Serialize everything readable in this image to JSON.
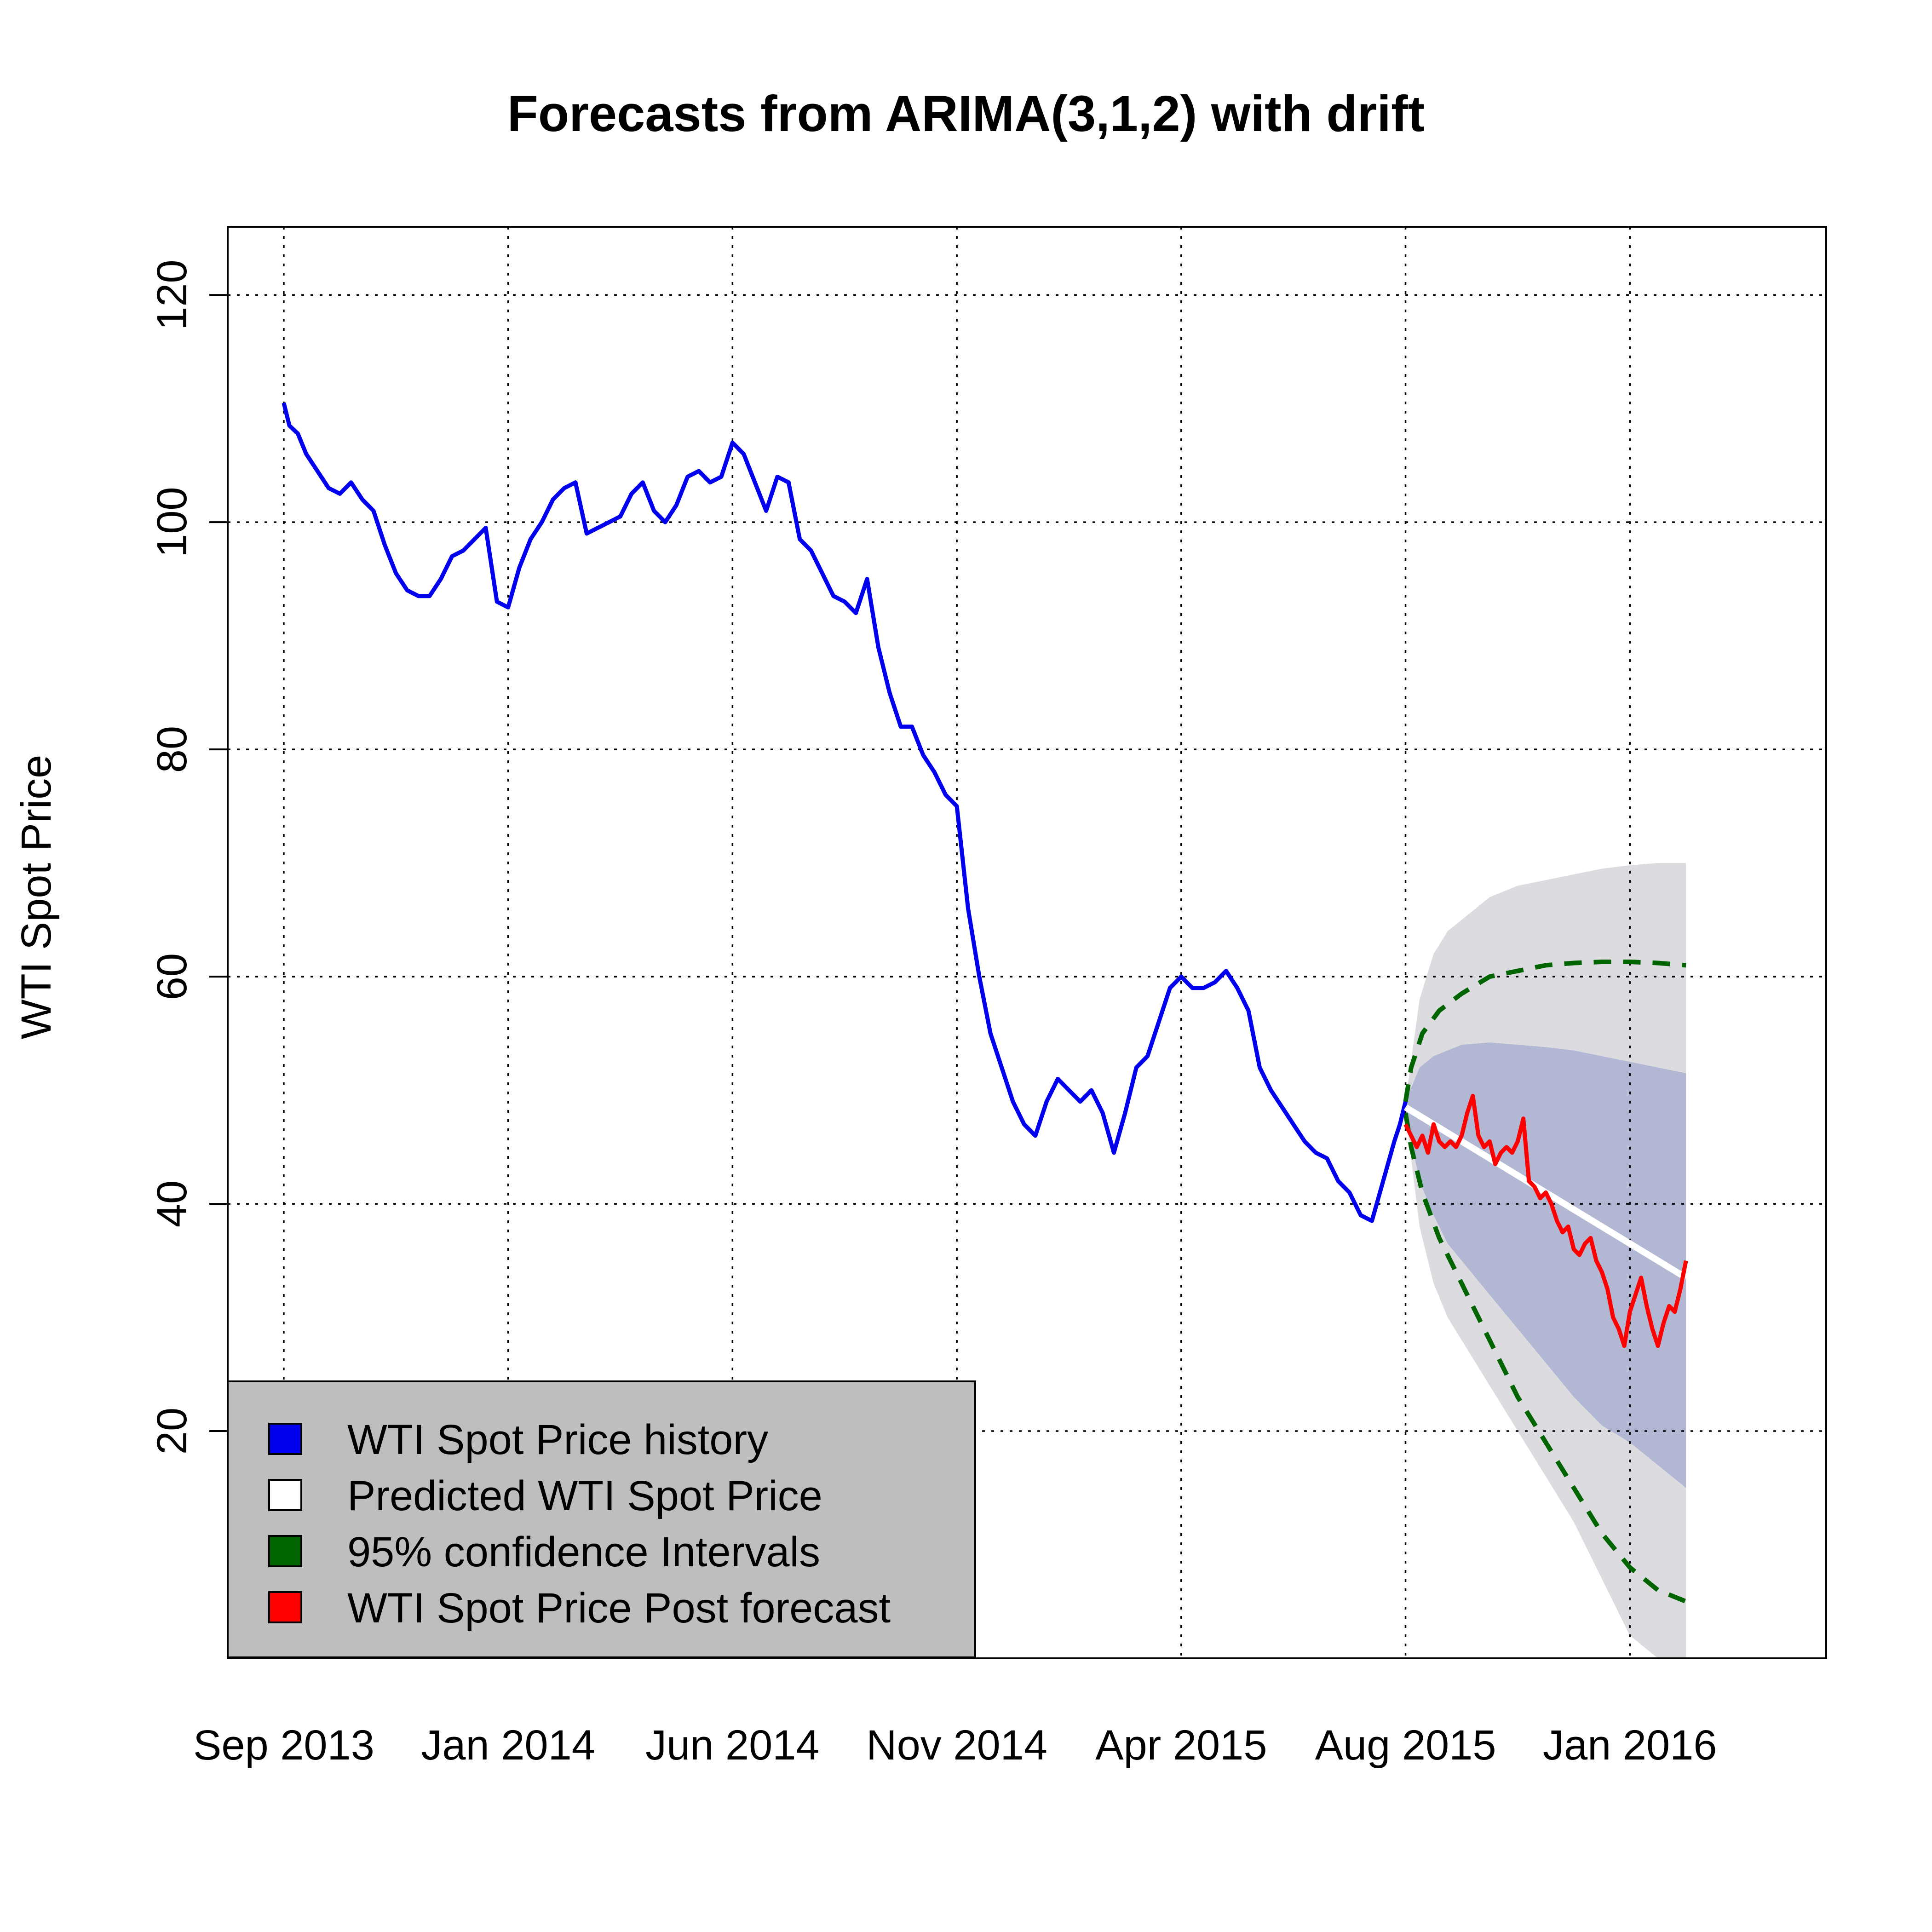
{
  "chart_data": {
    "type": "line",
    "title": "Forecasts from ARIMA(3,1,2) with drift",
    "xlabel": "",
    "ylabel": "WTI Spot Price",
    "xlim": [
      0,
      28.5
    ],
    "ylim": [
      0,
      126
    ],
    "x_ticks": [
      {
        "label": "Sep 2013",
        "x": 1
      },
      {
        "label": "Jan 2014",
        "x": 5
      },
      {
        "label": "Jun 2014",
        "x": 9
      },
      {
        "label": "Nov 2014",
        "x": 13
      },
      {
        "label": "Apr 2015",
        "x": 17
      },
      {
        "label": "Aug 2015",
        "x": 21
      },
      {
        "label": "Jan 2016",
        "x": 25
      }
    ],
    "y_ticks": [
      20,
      40,
      60,
      80,
      100,
      120
    ],
    "grid": true,
    "legend_position": "bottom-left",
    "legend": [
      {
        "label": "WTI Spot Price  history",
        "color": "#0000ee"
      },
      {
        "label": "Predicted  WTI Spot Price",
        "color": "#ffffff"
      },
      {
        "label": "95% confidence Intervals",
        "color": "#006400"
      },
      {
        "label": "WTI Spot Price  Post forecast",
        "color": "#ff0000"
      }
    ],
    "series": [
      {
        "name": "WTI Spot Price  history",
        "color": "#0000ee",
        "x": [
          1.0,
          1.1,
          1.25,
          1.4,
          1.6,
          1.8,
          2.0,
          2.2,
          2.4,
          2.6,
          2.8,
          3.0,
          3.2,
          3.4,
          3.6,
          3.8,
          4.0,
          4.2,
          4.4,
          4.6,
          4.8,
          5.0,
          5.2,
          5.4,
          5.6,
          5.8,
          6.0,
          6.2,
          6.4,
          6.6,
          6.8,
          7.0,
          7.2,
          7.4,
          7.6,
          7.8,
          8.0,
          8.2,
          8.4,
          8.6,
          8.8,
          9.0,
          9.2,
          9.4,
          9.6,
          9.8,
          10.0,
          10.2,
          10.4,
          10.6,
          10.8,
          11.0,
          11.2,
          11.4,
          11.6,
          11.8,
          12.0,
          12.2,
          12.4,
          12.6,
          12.8,
          13.0,
          13.2,
          13.4,
          13.6,
          13.8,
          14.0,
          14.2,
          14.4,
          14.6,
          14.8,
          15.0,
          15.2,
          15.4,
          15.6,
          15.8,
          16.0,
          16.2,
          16.4,
          16.6,
          16.8,
          17.0,
          17.2,
          17.4,
          17.6,
          17.8,
          18.0,
          18.2,
          18.4,
          18.6,
          18.8,
          19.0,
          19.2,
          19.4,
          19.6,
          19.8,
          20.0,
          20.2,
          20.4,
          20.6,
          20.8,
          20.9,
          21.0
        ],
        "values": [
          110.5,
          108.5,
          107.8,
          106,
          104.5,
          103,
          102.5,
          103.5,
          102,
          101,
          98,
          95.5,
          94,
          93.5,
          93.5,
          95,
          97,
          97.5,
          98.5,
          99.5,
          93,
          92.5,
          96,
          98.5,
          100,
          102,
          103,
          103.5,
          99,
          99.5,
          100,
          100.5,
          102.5,
          103.5,
          101,
          100,
          101.5,
          104,
          104.5,
          103.5,
          104,
          107,
          106,
          103.5,
          101,
          104,
          103.5,
          98.5,
          97.5,
          95.5,
          93.5,
          93,
          92,
          95,
          89,
          85,
          82,
          82,
          79.5,
          78,
          76,
          75,
          66,
          60,
          55,
          52,
          49,
          47,
          46,
          49,
          51,
          50,
          49,
          50,
          48,
          44.5,
          48,
          52,
          53,
          56,
          59,
          60,
          59,
          59,
          59.5,
          60.5,
          59,
          57,
          52,
          50,
          48.5,
          47,
          45.5,
          44.5,
          44,
          42,
          41,
          39,
          38.5,
          42,
          45.5,
          47,
          49
        ]
      },
      {
        "name": "Predicted  WTI Spot Price",
        "color": "#ffffff",
        "x": [
          21.0,
          26.0
        ],
        "values": [
          48.5,
          33.5
        ]
      },
      {
        "name": "WTI Spot Price  Post forecast",
        "color": "#ff0000",
        "x": [
          21.0,
          21.1,
          21.2,
          21.3,
          21.4,
          21.5,
          21.6,
          21.7,
          21.8,
          21.9,
          22.0,
          22.1,
          22.2,
          22.3,
          22.4,
          22.5,
          22.6,
          22.7,
          22.8,
          22.9,
          23.0,
          23.1,
          23.2,
          23.3,
          23.4,
          23.5,
          23.6,
          23.7,
          23.8,
          23.9,
          24.0,
          24.1,
          24.2,
          24.3,
          24.4,
          24.5,
          24.6,
          24.7,
          24.8,
          24.9,
          25.0,
          25.1,
          25.2,
          25.3,
          25.4,
          25.5,
          25.6,
          25.7,
          25.8,
          25.9,
          26.0
        ],
        "values": [
          47,
          46,
          45,
          46,
          44.5,
          47,
          45.5,
          45,
          45.5,
          45,
          46,
          48,
          49.5,
          46,
          45,
          45.5,
          43.5,
          44.5,
          45,
          44.5,
          45.5,
          47.5,
          42,
          41.5,
          40.5,
          41,
          40,
          38.5,
          37.5,
          38,
          36,
          35.5,
          36.5,
          37,
          35,
          34,
          32.5,
          30,
          29,
          27.5,
          30.5,
          32,
          33.5,
          31,
          29,
          27.5,
          29.5,
          31,
          30.5,
          32.5,
          35
        ]
      }
    ],
    "intervals": {
      "x": [
        21.0,
        21.25,
        21.5,
        21.75,
        22.0,
        22.5,
        23.0,
        23.5,
        24.0,
        24.5,
        25.0,
        25.5,
        26.0
      ],
      "lower95": [
        48,
        38,
        33,
        30,
        28,
        24,
        20,
        16,
        12,
        7,
        2,
        0,
        0
      ],
      "upper95": [
        49,
        58,
        62,
        64,
        65,
        67,
        68,
        68.5,
        69,
        69.5,
        69.8,
        70,
        70
      ],
      "lower80": [
        48,
        42,
        39,
        36.5,
        35,
        32,
        29,
        26,
        23,
        20.5,
        19,
        17,
        15
      ],
      "upper80": [
        49,
        52,
        53,
        53.5,
        54,
        54.2,
        54,
        53.8,
        53.5,
        53,
        52.5,
        52,
        51.5
      ],
      "dashed_x": [
        21.0,
        21.1,
        21.3,
        21.6,
        22.0,
        22.5,
        23.0,
        23.5,
        24.0,
        24.5,
        25.0,
        25.5,
        26.0
      ],
      "dashed_lower": [
        48,
        45,
        41,
        37,
        33,
        28,
        23,
        19,
        15,
        11,
        8,
        6,
        5
      ],
      "dashed_upper": [
        49,
        52,
        55,
        57,
        58.5,
        60,
        60.5,
        61,
        61.2,
        61.3,
        61.3,
        61.2,
        61
      ]
    }
  }
}
